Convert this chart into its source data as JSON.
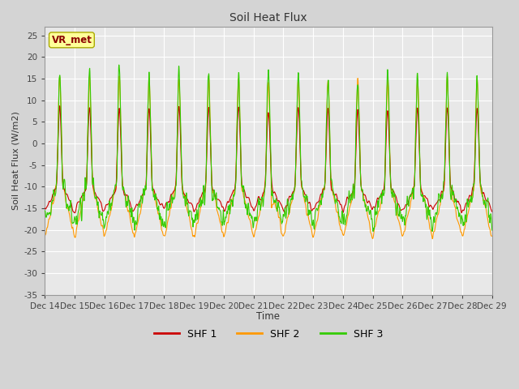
{
  "title": "Soil Heat Flux",
  "xlabel": "Time",
  "ylabel": "Soil Heat Flux (W/m2)",
  "ylim": [
    -35,
    27
  ],
  "yticks": [
    -35,
    -30,
    -25,
    -20,
    -15,
    -10,
    -5,
    0,
    5,
    10,
    15,
    20,
    25
  ],
  "colors": {
    "SHF 1": "#cc0000",
    "SHF 2": "#ff9900",
    "SHF 3": "#33cc00"
  },
  "fig_bg": "#d4d4d4",
  "plot_bg": "#e8e8e8",
  "grid_color": "#ffffff",
  "annotation_text": "VR_met",
  "annotation_color": "#8b0000",
  "annotation_bg": "#ffff99",
  "n_days": 15,
  "points_per_day": 144,
  "start_day": 14
}
